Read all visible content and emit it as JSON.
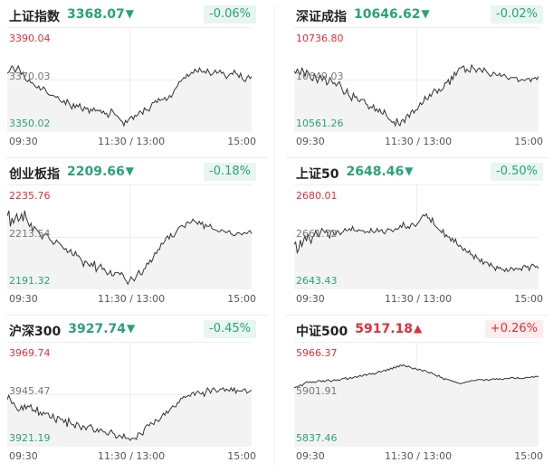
{
  "panels": [
    {
      "name": "上证指数",
      "value": "3368.07",
      "direction": "down",
      "change": "-0.06%",
      "y_labels": {
        "top": "3390.04",
        "mid": "3370.03",
        "bottom": "3350.02"
      },
      "x_labels": [
        "09:30",
        "11:30 / 13:00",
        "15:00"
      ],
      "series": [
        56,
        57,
        60,
        63,
        61,
        57,
        60,
        63,
        59,
        55,
        57,
        52,
        49,
        48,
        50,
        47,
        47,
        45,
        43,
        42,
        44,
        40,
        41,
        43,
        41,
        38,
        36,
        35,
        35,
        35,
        34,
        33,
        34,
        31,
        29,
        28,
        30,
        26,
        31,
        28,
        25,
        22,
        27,
        23,
        26,
        24,
        27,
        22,
        20,
        24,
        22,
        23,
        18,
        22,
        20,
        23,
        20,
        21,
        20,
        21,
        18,
        20,
        17,
        18,
        14,
        17,
        22,
        20,
        17,
        16,
        15,
        13,
        11,
        10,
        6,
        11,
        9,
        12,
        14,
        15,
        12,
        16,
        15,
        17,
        20,
        19,
        17,
        23,
        21,
        21,
        20,
        24,
        28,
        28,
        30,
        28,
        32,
        30,
        31,
        31,
        33,
        30,
        32,
        35,
        33,
        36,
        40,
        42,
        44,
        48,
        48,
        50,
        52,
        51,
        55,
        53,
        55,
        57,
        56,
        60,
        58,
        57,
        61,
        58,
        57,
        58,
        56,
        60,
        57,
        54,
        55,
        57,
        59,
        56,
        57,
        59,
        56,
        57,
        54,
        51,
        53,
        55,
        56,
        55,
        59,
        56,
        55,
        52,
        56,
        51,
        49,
        48,
        52,
        54,
        51,
        53
      ]
    },
    {
      "name": "深证成指",
      "value": "10646.62",
      "direction": "down",
      "change": "-0.02%",
      "y_labels": {
        "top": "10736.80",
        "mid": "10649.03",
        "bottom": "10561.26"
      },
      "x_labels": [
        "09:30",
        "11:30 / 13:00",
        "15:00"
      ],
      "series": [
        58,
        56,
        60,
        57,
        55,
        61,
        58,
        53,
        59,
        57,
        54,
        50,
        49,
        56,
        51,
        47,
        52,
        54,
        49,
        53,
        51,
        45,
        47,
        52,
        49,
        46,
        47,
        44,
        46,
        48,
        44,
        40,
        36,
        37,
        41,
        35,
        33,
        30,
        37,
        33,
        34,
        30,
        29,
        31,
        31,
        31,
        27,
        26,
        22,
        24,
        23,
        26,
        20,
        22,
        19,
        22,
        18,
        17,
        21,
        17,
        14,
        12,
        11,
        9,
        10,
        6,
        13,
        8,
        6,
        11,
        12,
        9,
        15,
        17,
        14,
        19,
        21,
        18,
        21,
        21,
        24,
        28,
        26,
        28,
        34,
        31,
        31,
        36,
        34,
        38,
        41,
        40,
        37,
        41,
        39,
        40,
        42,
        47,
        47,
        50,
        45,
        53,
        50,
        57,
        54,
        58,
        61,
        61,
        62,
        63,
        57,
        60,
        58,
        57,
        64,
        61,
        60,
        57,
        60,
        61,
        59,
        57,
        61,
        59,
        57,
        55,
        53,
        54,
        57,
        56,
        54,
        54,
        56,
        53,
        54,
        55,
        53,
        51,
        50,
        52,
        52,
        52,
        52,
        52,
        48,
        49,
        50,
        50,
        49,
        50,
        51,
        51,
        48,
        51,
        51,
        52,
        50,
        53
      ]
    },
    {
      "name": "创业板指",
      "value": "2209.66",
      "direction": "down",
      "change": "-0.18%",
      "y_labels": {
        "top": "2235.76",
        "mid": "2213.54",
        "bottom": "2191.32"
      },
      "x_labels": [
        "09:30",
        "11:30 / 13:00",
        "15:00"
      ],
      "series": [
        70,
        75,
        60,
        68,
        63,
        68,
        72,
        65,
        67,
        72,
        65,
        75,
        68,
        64,
        60,
        63,
        55,
        60,
        58,
        56,
        54,
        51,
        48,
        52,
        52,
        53,
        50,
        47,
        46,
        43,
        44,
        47,
        45,
        44,
        42,
        40,
        38,
        39,
        35,
        36,
        38,
        33,
        32,
        36,
        32,
        32,
        30,
        27,
        22,
        27,
        26,
        24,
        22,
        25,
        22,
        27,
        17,
        20,
        22,
        24,
        19,
        20,
        17,
        14,
        15,
        18,
        13,
        13,
        16,
        16,
        16,
        14,
        16,
        14,
        10,
        8,
        5,
        8,
        12,
        10,
        8,
        11,
        15,
        18,
        14,
        14,
        19,
        20,
        25,
        24,
        28,
        26,
        30,
        35,
        34,
        38,
        38,
        44,
        43,
        45,
        49,
        51,
        48,
        53,
        50,
        50,
        53,
        56,
        59,
        60,
        61,
        60,
        59,
        64,
        64,
        63,
        64,
        67,
        65,
        64,
        62,
        65,
        62,
        64,
        58,
        62,
        60,
        60,
        62,
        58,
        57,
        57,
        56,
        55,
        55,
        57,
        56,
        55,
        54,
        55,
        56,
        53,
        52,
        51,
        52,
        54,
        54,
        53,
        52,
        54,
        54,
        53,
        55,
        56,
        53
      ]
    },
    {
      "name": "上证50",
      "value": "2648.46",
      "direction": "down",
      "change": "-0.50%",
      "y_labels": {
        "top": "2680.01",
        "mid": "2661.72",
        "bottom": "2643.43"
      },
      "x_labels": [
        "09:30",
        "11:30 / 13:00",
        "15:00"
      ],
      "series": [
        43,
        45,
        35,
        38,
        47,
        41,
        46,
        51,
        46,
        53,
        48,
        44,
        50,
        51,
        56,
        52,
        50,
        54,
        58,
        56,
        54,
        56,
        52,
        49,
        56,
        56,
        52,
        52,
        56,
        55,
        52,
        54,
        55,
        58,
        56,
        56,
        58,
        56,
        60,
        56,
        56,
        55,
        57,
        56,
        56,
        56,
        54,
        55,
        55,
        54,
        58,
        55,
        54,
        55,
        58,
        55,
        56,
        57,
        54,
        53,
        56,
        58,
        57,
        57,
        55,
        56,
        58,
        57,
        58,
        61,
        59,
        64,
        60,
        58,
        60,
        58,
        62,
        63,
        61,
        60,
        62,
        64,
        66,
        69,
        71,
        70,
        72,
        68,
        68,
        64,
        68,
        62,
        60,
        59,
        57,
        56,
        54,
        57,
        50,
        52,
        50,
        50,
        46,
        49,
        45,
        48,
        43,
        41,
        42,
        40,
        37,
        39,
        36,
        35,
        37,
        33,
        33,
        29,
        33,
        30,
        29,
        26,
        29,
        24,
        26,
        26,
        25,
        22,
        25,
        22,
        21,
        18,
        22,
        20,
        21,
        19,
        19,
        17,
        20,
        17,
        18,
        21,
        20,
        18,
        20,
        20,
        19,
        20,
        18,
        22,
        23,
        21,
        22,
        18,
        22,
        24,
        23,
        21,
        22,
        20
      ]
    },
    {
      "name": "沪深300",
      "value": "3927.74",
      "direction": "down",
      "change": "-0.45%",
      "y_labels": {
        "top": "3969.74",
        "mid": "3945.47",
        "bottom": "3921.19"
      },
      "x_labels": [
        "09:30",
        "11:30 / 13:00",
        "15:00"
      ],
      "series": [
        45,
        49,
        45,
        41,
        42,
        39,
        36,
        34,
        35,
        39,
        35,
        40,
        36,
        39,
        38,
        40,
        34,
        35,
        33,
        38,
        30,
        33,
        30,
        33,
        31,
        32,
        32,
        28,
        27,
        31,
        26,
        23,
        29,
        28,
        26,
        26,
        23,
        26,
        19,
        27,
        23,
        21,
        21,
        18,
        23,
        22,
        19,
        16,
        20,
        19,
        16,
        19,
        20,
        21,
        18,
        14,
        14,
        17,
        14,
        17,
        16,
        14,
        14,
        12,
        11,
        14,
        16,
        13,
        12,
        8,
        9,
        11,
        10,
        8,
        12,
        8,
        8,
        8,
        6,
        8,
        8,
        8,
        7,
        13,
        13,
        12,
        11,
        17,
        20,
        21,
        20,
        23,
        22,
        21,
        26,
        25,
        24,
        26,
        29,
        32,
        30,
        34,
        32,
        35,
        37,
        39,
        38,
        38,
        42,
        42,
        46,
        46,
        48,
        47,
        48,
        49,
        48,
        51,
        52,
        49,
        52,
        53,
        51,
        50,
        52,
        48,
        52,
        56,
        54,
        51,
        55,
        56,
        54,
        52,
        53,
        55,
        55,
        56,
        53,
        55,
        54,
        53,
        56,
        53,
        56,
        51,
        54,
        53,
        53,
        53,
        55,
        55,
        51,
        52,
        53,
        54
      ]
    },
    {
      "name": "中证500",
      "value": "5917.18",
      "direction": "up",
      "change": "+0.26%",
      "y_labels": {
        "top": "5966.37",
        "mid": "5901.91",
        "bottom": "5837.46"
      },
      "x_labels": [
        "09:30",
        "11:30 / 13:00",
        "15:00"
      ],
      "series": [
        56,
        57,
        57,
        58,
        59,
        58,
        60,
        61,
        62,
        61,
        62,
        61,
        62,
        61,
        62,
        63,
        63,
        62,
        63,
        62,
        63,
        64,
        63,
        62,
        63,
        64,
        63,
        64,
        63,
        64,
        65,
        65,
        66,
        64,
        65,
        66,
        65,
        66,
        67,
        66,
        67,
        68,
        67,
        68,
        69,
        68,
        69,
        70,
        69,
        70,
        69,
        70,
        71,
        72,
        71,
        72,
        73,
        72,
        74,
        73,
        75,
        74,
        76,
        75,
        77,
        76,
        78,
        77,
        78,
        77,
        76,
        77,
        76,
        75,
        74,
        75,
        74,
        73,
        74,
        73,
        72,
        73,
        72,
        71,
        70,
        71,
        70,
        69,
        68,
        67,
        68,
        66,
        66,
        64,
        65,
        64,
        64,
        63,
        63,
        62,
        62,
        61,
        61,
        60,
        60,
        61,
        61,
        62,
        62,
        62,
        63,
        63,
        63,
        63,
        64,
        64,
        64,
        64,
        63,
        64,
        64,
        63,
        64,
        64,
        65,
        64,
        65,
        64,
        65,
        64,
        64,
        65,
        65,
        65,
        65,
        66,
        66,
        65,
        65,
        66,
        65,
        65,
        65,
        65,
        66,
        66,
        66,
        66,
        67,
        66,
        67,
        67,
        67
      ]
    }
  ],
  "colors": {
    "up": "#e0303a",
    "down": "#2aa27a",
    "line": "#333333",
    "fill": "#f3f3f3",
    "grid": "#eeeeee"
  }
}
